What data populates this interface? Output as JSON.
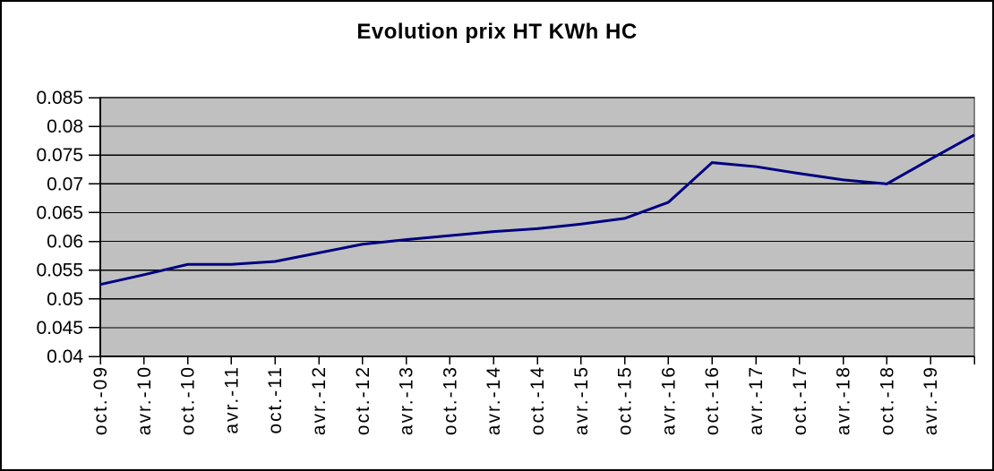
{
  "chart_data": {
    "type": "line",
    "title": "Evolution prix HT KWh HC",
    "categories": [
      "oct.-09",
      "avr.-10",
      "oct.-10",
      "avr.-11",
      "oct.-11",
      "avr.-12",
      "oct.-12",
      "avr.-13",
      "oct.-13",
      "avr.-14",
      "oct.-14",
      "avr.-15",
      "oct.-15",
      "avr.-16",
      "oct.-16",
      "avr.-17",
      "oct.-17",
      "avr.-18",
      "oct.-18",
      "avr.-19",
      ""
    ],
    "values": [
      0.0525,
      0.0542,
      0.056,
      0.056,
      0.0565,
      0.058,
      0.0595,
      0.0603,
      0.061,
      0.0617,
      0.0622,
      0.063,
      0.064,
      0.0668,
      0.0737,
      0.073,
      0.0718,
      0.0707,
      0.07,
      0.0743,
      0.0785
    ],
    "xlabel": "",
    "ylabel": "",
    "ylim": [
      0.04,
      0.085
    ],
    "yticks": [
      0.04,
      0.045,
      0.05,
      0.055,
      0.06,
      0.065,
      0.07,
      0.075,
      0.08,
      0.085
    ],
    "ytick_labels": [
      "0.04",
      "0.045",
      "0.05",
      "0.055",
      "0.06",
      "0.065",
      "0.07",
      "0.075",
      "0.08",
      "0.085"
    ],
    "x_label_rotation": -90,
    "grid": "horizontal",
    "legend": "none",
    "colors": {
      "line": "#000080",
      "plot_bg": "#C0C0C0",
      "plot_border": "#808080",
      "grid": "#000000",
      "axis": "#000000",
      "text": "#000000",
      "background": "#FFFFFF",
      "frame_border": "#000000"
    }
  }
}
